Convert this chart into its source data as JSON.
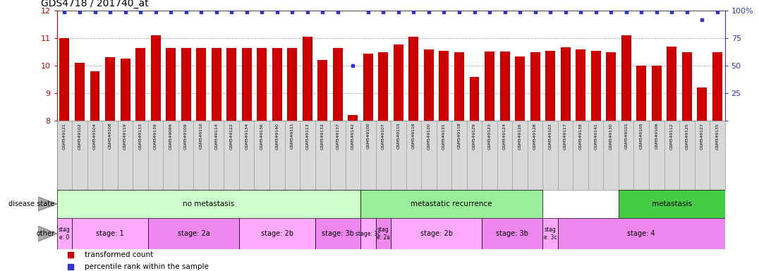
{
  "title": "GDS4718 / 201740_at",
  "samples": [
    "GSM549121",
    "GSM549102",
    "GSM549104",
    "GSM549108",
    "GSM549119",
    "GSM549133",
    "GSM549139",
    "GSM549099",
    "GSM549109",
    "GSM549110",
    "GSM549114",
    "GSM549122",
    "GSM549134",
    "GSM549136",
    "GSM549140",
    "GSM549111",
    "GSM549113",
    "GSM549132",
    "GSM549137",
    "GSM549142",
    "GSM549100",
    "GSM549107",
    "GSM549115",
    "GSM549116",
    "GSM549120",
    "GSM549131",
    "GSM549118",
    "GSM549129",
    "GSM549123",
    "GSM549124",
    "GSM549126",
    "GSM549128",
    "GSM549103",
    "GSM549117",
    "GSM549138",
    "GSM549141",
    "GSM549130",
    "GSM549101",
    "GSM549105",
    "GSM549106",
    "GSM549112",
    "GSM549125",
    "GSM549127",
    "GSM549135"
  ],
  "bar_values": [
    11.0,
    10.1,
    9.8,
    10.3,
    10.25,
    10.65,
    11.1,
    10.65,
    10.65,
    10.65,
    10.65,
    10.65,
    10.65,
    10.65,
    10.65,
    10.65,
    11.05,
    10.2,
    10.65,
    8.2,
    10.45,
    10.48,
    10.78,
    11.05,
    10.6,
    10.55,
    10.5,
    9.6,
    10.52,
    10.52,
    10.35,
    10.5,
    10.55,
    10.68,
    10.6,
    10.55,
    10.5,
    11.1,
    10.0,
    10.0,
    10.7,
    10.5,
    9.2,
    10.5
  ],
  "percentile_values": [
    99,
    99,
    99,
    99,
    99,
    99,
    99,
    99,
    99,
    99,
    99,
    99,
    99,
    99,
    99,
    99,
    99,
    99,
    99,
    50,
    99,
    99,
    99,
    99,
    99,
    99,
    99,
    99,
    99,
    99,
    99,
    99,
    99,
    99,
    99,
    99,
    99,
    99,
    99,
    99,
    99,
    99,
    92,
    99
  ],
  "bar_color": "#cc0000",
  "dot_color": "#3333cc",
  "ylim_left": [
    8,
    12
  ],
  "ylim_right": [
    0,
    100
  ],
  "yticks_left": [
    8,
    9,
    10,
    11,
    12
  ],
  "yticks_right": [
    0,
    25,
    50,
    75,
    100
  ],
  "background_color": "#ffffff",
  "grid_color": "#888888",
  "disease_state_groups": [
    {
      "label": "no metastasis",
      "start": 0,
      "end": 19,
      "color": "#ccffcc"
    },
    {
      "label": "metastatic recurrence",
      "start": 20,
      "end": 31,
      "color": "#99ee99"
    },
    {
      "label": "metastasis",
      "start": 37,
      "end": 43,
      "color": "#44cc44"
    }
  ],
  "stage_groups": [
    {
      "label": "stag\ne: 0",
      "start": 0,
      "end": 0,
      "color": "#ffaaff"
    },
    {
      "label": "stage: 1",
      "start": 1,
      "end": 5,
      "color": "#ffaaff"
    },
    {
      "label": "stage: 2a",
      "start": 6,
      "end": 11,
      "color": "#ee88ee"
    },
    {
      "label": "stage: 2b",
      "start": 12,
      "end": 16,
      "color": "#ffaaff"
    },
    {
      "label": "stage: 3b",
      "start": 17,
      "end": 19,
      "color": "#ee88ee"
    },
    {
      "label": "stage: 3c",
      "start": 20,
      "end": 20,
      "color": "#ffaaff"
    },
    {
      "label": "stag\ne: 2a",
      "start": 21,
      "end": 21,
      "color": "#ee88ee"
    },
    {
      "label": "stage: 2b",
      "start": 22,
      "end": 27,
      "color": "#ffaaff"
    },
    {
      "label": "stage: 3b",
      "start": 28,
      "end": 31,
      "color": "#ee88ee"
    },
    {
      "label": "stag\ne: 3c",
      "start": 32,
      "end": 32,
      "color": "#ffaaff"
    },
    {
      "label": "stage: 4",
      "start": 33,
      "end": 43,
      "color": "#ee88ee"
    }
  ],
  "legend_items": [
    {
      "label": "transformed count",
      "color": "#cc0000"
    },
    {
      "label": "percentile rank within the sample",
      "color": "#3333cc"
    }
  ],
  "label_bg": "#d8d8d8",
  "label_border": "#888888"
}
